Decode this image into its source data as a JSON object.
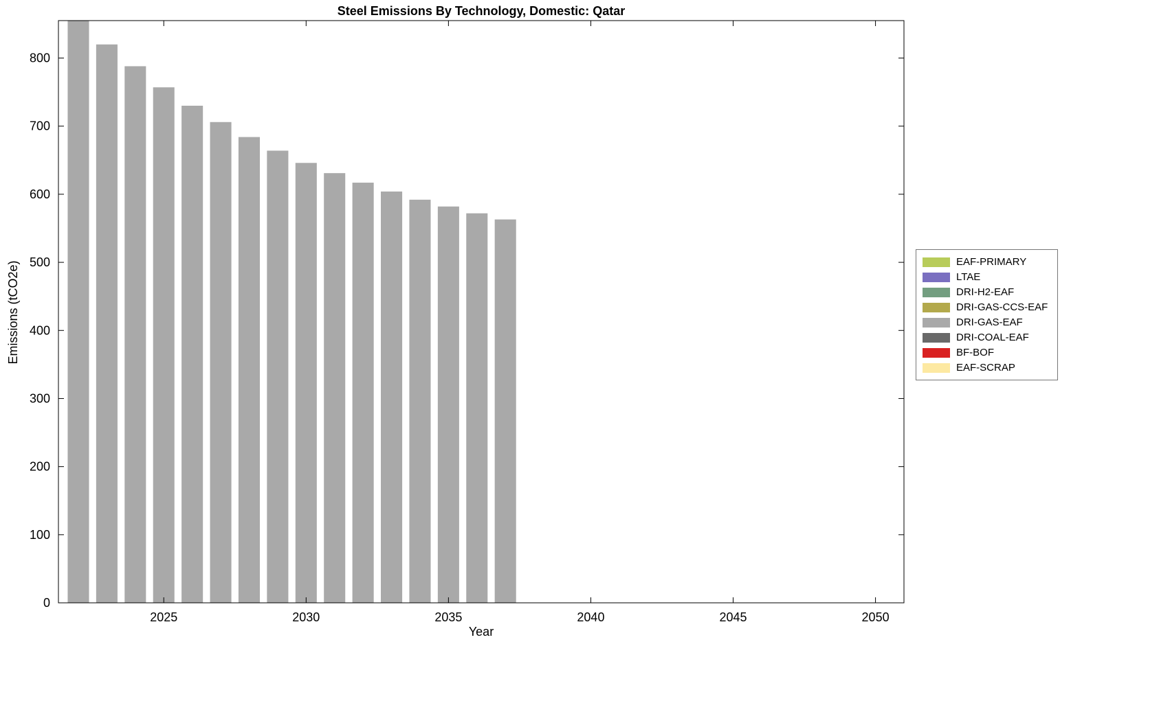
{
  "figure": {
    "background": "#ffffff"
  },
  "chart_data": {
    "type": "bar",
    "title": "Steel Emissions By Technology, Domestic: Qatar",
    "xlabel": "Year",
    "ylabel": "Emissions (tCO2e)",
    "x": [
      2022,
      2023,
      2024,
      2025,
      2026,
      2027,
      2028,
      2029,
      2030,
      2031,
      2032,
      2033,
      2034,
      2035,
      2036,
      2037
    ],
    "series": [
      {
        "name": "DRI-GAS-EAF",
        "color": "#a9a9a9",
        "values": [
          857,
          820,
          788,
          757,
          730,
          706,
          684,
          664,
          646,
          631,
          617,
          604,
          592,
          582,
          572,
          563
        ]
      }
    ],
    "xlim": [
      2021.3,
      2051.0
    ],
    "ylim": [
      0,
      855
    ],
    "xticks": [
      2025,
      2030,
      2035,
      2040,
      2045,
      2050
    ],
    "yticks": [
      0,
      100,
      200,
      300,
      400,
      500,
      600,
      700,
      800
    ],
    "grid": false,
    "bar_rel_width": 0.75,
    "axis_color": "#000000",
    "legend": {
      "position": "right-outside",
      "entries": [
        {
          "label": "EAF-PRIMARY",
          "color": "#b8cc5a"
        },
        {
          "label": "LTAE",
          "color": "#7a6fc0"
        },
        {
          "label": "DRI-H2-EAF",
          "color": "#739e80"
        },
        {
          "label": "DRI-GAS-CCS-EAF",
          "color": "#b3a94c"
        },
        {
          "label": "DRI-GAS-EAF",
          "color": "#a9a9a9"
        },
        {
          "label": "DRI-COAL-EAF",
          "color": "#696969"
        },
        {
          "label": "BF-BOF",
          "color": "#d92121"
        },
        {
          "label": "EAF-SCRAP",
          "color": "#fde9a2"
        }
      ]
    }
  }
}
